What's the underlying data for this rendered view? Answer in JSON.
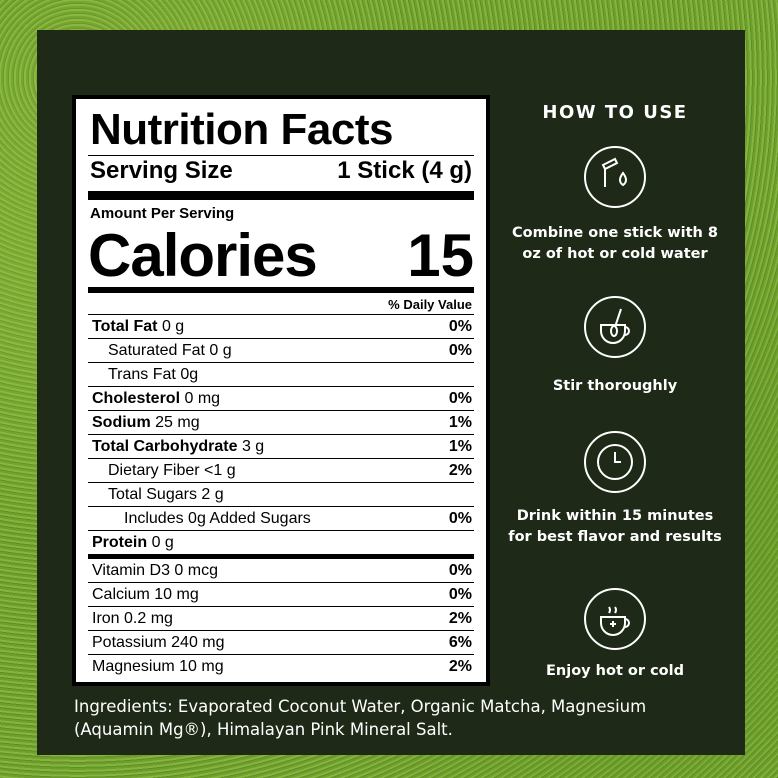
{
  "nutrition": {
    "title": "Nutrition Facts",
    "serving_size_label": "Serving Size",
    "serving_size": "1 Stick (4 g)",
    "amount_per_serving": "Amount Per Serving",
    "calories_label": "Calories",
    "calories": 15,
    "daily_value_header": "% Daily Value",
    "rows": [
      {
        "name": "Total Fat",
        "amount": "0 g",
        "dv": "0%"
      },
      {
        "name": "Saturated Fat",
        "amount": "0 g",
        "dv": "0%"
      },
      {
        "name": "Trans Fat",
        "amount": "0g"
      },
      {
        "name": "Cholesterol",
        "amount": "0 mg",
        "dv": "0%"
      },
      {
        "name": "Sodium",
        "amount": "25 mg",
        "dv": "1%"
      },
      {
        "name": "Total Carbohydrate",
        "amount": "3 g",
        "dv": "1%"
      },
      {
        "name": "Dietary Fiber",
        "amount": "<1 g",
        "dv": "2%"
      },
      {
        "name": "Total Sugars",
        "amount": "2 g"
      },
      {
        "name": "Includes 0g Added Sugars",
        "dv": "0%"
      },
      {
        "name": "Protein",
        "amount": "0 g"
      },
      {
        "name": "Vitamin D3",
        "amount": "0 mcg",
        "dv": "0%"
      },
      {
        "name": "Calcium",
        "amount": "10 mg",
        "dv": "0%"
      },
      {
        "name": "Iron",
        "amount": "0.2 mg",
        "dv": "2%"
      },
      {
        "name": "Potassium",
        "amount": "240 mg",
        "dv": "6%"
      },
      {
        "name": "Magnesium",
        "amount": "10 mg",
        "dv": "2%"
      }
    ]
  },
  "how_to_use": {
    "title": "HOW TO USE",
    "steps": [
      "Combine one stick with 8 oz of hot or cold water",
      "Stir thoroughly",
      "Drink within 15 minutes for best flavor and results",
      "Enjoy hot or cold"
    ]
  },
  "ingredients": "Ingredients: Evaporated Coconut Water,  Organic Matcha, Magnesium (Aquamin Mg®), Himalayan Pink Mineral Salt."
}
